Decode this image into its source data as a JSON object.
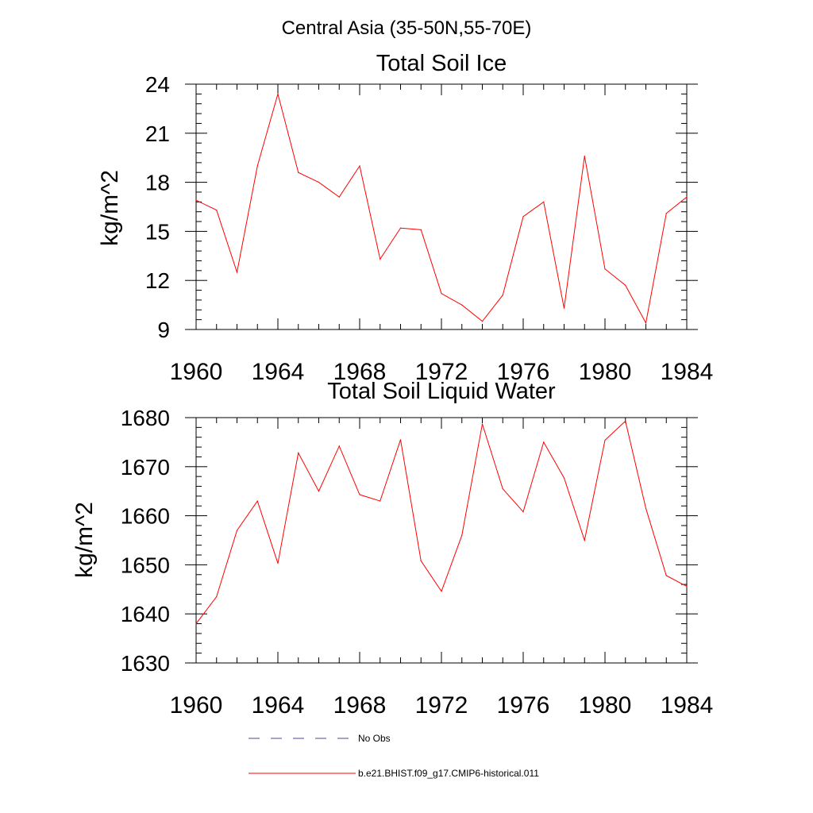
{
  "suptitle": "Central Asia (35-50N,55-70E)",
  "legend": {
    "items": [
      {
        "label": "No Obs",
        "color": "#4a4a9a",
        "style": "dashed"
      },
      {
        "label": "b.e21.BHIST.f09_g17.CMIP6-historical.011",
        "color": "#ff0000",
        "style": "solid"
      }
    ]
  },
  "chart_data": [
    {
      "type": "line",
      "title": "Total Soil Ice",
      "ylabel": "kg/m^2",
      "xlabel": "",
      "xlim": [
        1960,
        1984
      ],
      "ylim": [
        9,
        24
      ],
      "xticks": [
        "1960",
        "1964",
        "1968",
        "1972",
        "1976",
        "1980",
        "1984"
      ],
      "yticks": [
        "9",
        "12",
        "15",
        "18",
        "21",
        "24"
      ],
      "x": [
        1960,
        1961,
        1962,
        1963,
        1964,
        1965,
        1966,
        1967,
        1968,
        1969,
        1970,
        1971,
        1972,
        1973,
        1974,
        1975,
        1976,
        1977,
        1978,
        1979,
        1980,
        1981,
        1982,
        1983,
        1984
      ],
      "series": [
        {
          "values": [
            16.9,
            16.3,
            12.5,
            19.0,
            23.4,
            18.6,
            18.0,
            17.1,
            19.0,
            13.3,
            15.2,
            15.1,
            11.2,
            10.5,
            9.5,
            11.1,
            15.9,
            16.8,
            10.3,
            19.6,
            12.7,
            11.7,
            9.4,
            16.1,
            17.1
          ]
        }
      ]
    },
    {
      "type": "line",
      "title": "Total Soil Liquid Water",
      "ylabel": "kg/m^2",
      "xlabel": "",
      "xlim": [
        1960,
        1984
      ],
      "ylim": [
        1630,
        1680
      ],
      "xticks": [
        "1960",
        "1964",
        "1968",
        "1972",
        "1976",
        "1980",
        "1984"
      ],
      "yticks": [
        "1630",
        "1640",
        "1650",
        "1660",
        "1670",
        "1680"
      ],
      "x": [
        1960,
        1961,
        1962,
        1963,
        1964,
        1965,
        1966,
        1967,
        1968,
        1969,
        1970,
        1971,
        1972,
        1973,
        1974,
        1975,
        1976,
        1977,
        1978,
        1979,
        1980,
        1981,
        1982,
        1983,
        1984
      ],
      "series": [
        {
          "values": [
            1638,
            1643.5,
            1657,
            1663,
            1650.3,
            1672.8,
            1665,
            1674.2,
            1664.3,
            1663,
            1675.5,
            1650.8,
            1644.6,
            1656,
            1678.7,
            1665.5,
            1660.8,
            1675,
            1667.7,
            1655,
            1675.4,
            1679.3,
            1661.5,
            1647.8,
            1645.6
          ]
        }
      ]
    }
  ]
}
